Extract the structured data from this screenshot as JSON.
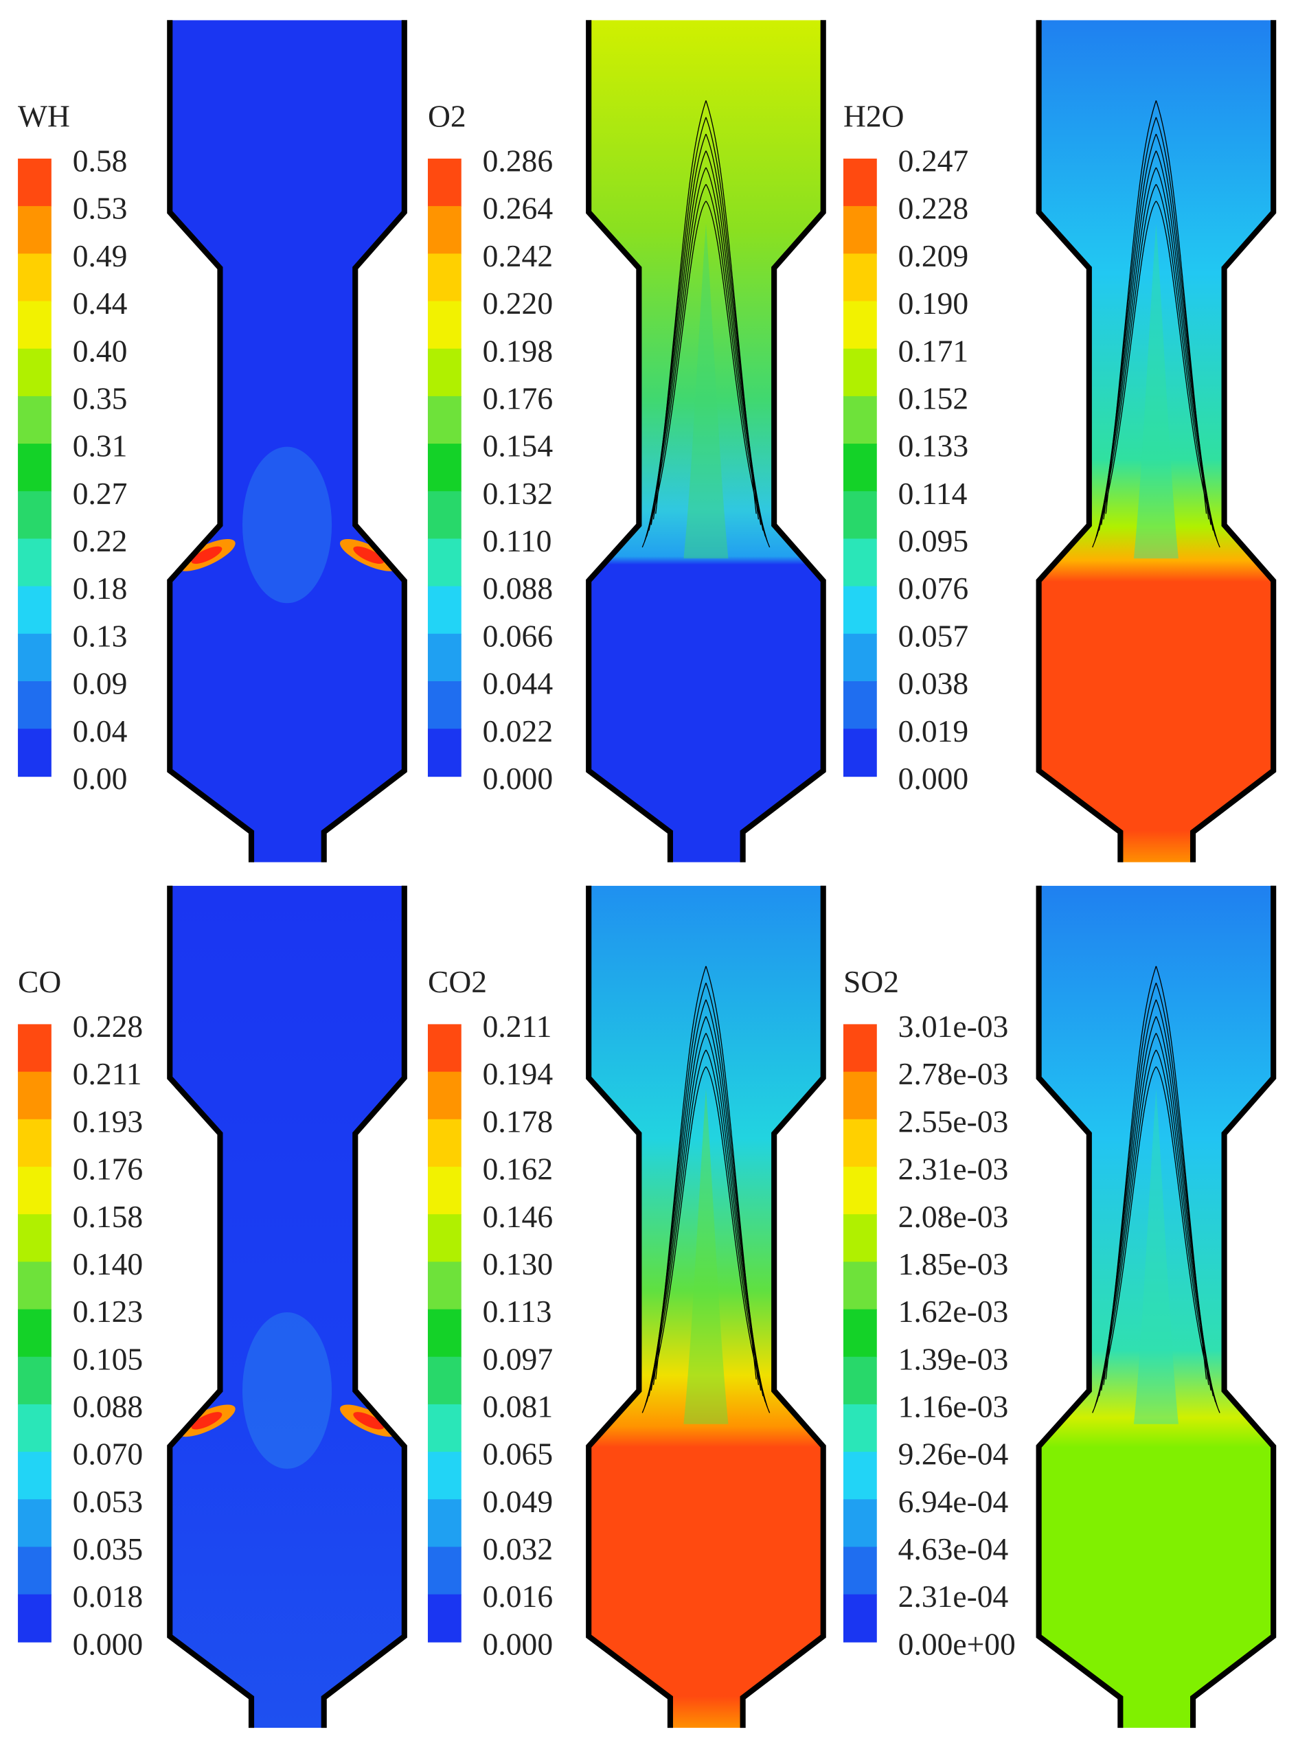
{
  "panels": [
    {
      "title": "WH",
      "legend": [
        "0.58",
        "0.53",
        "0.49",
        "0.44",
        "0.40",
        "0.35",
        "0.31",
        "0.27",
        "0.22",
        "0.18",
        "0.13",
        "0.09",
        "0.04",
        "0.00"
      ]
    },
    {
      "title": "O2",
      "legend": [
        "0.286",
        "0.264",
        "0.242",
        "0.220",
        "0.198",
        "0.176",
        "0.154",
        "0.132",
        "0.110",
        "0.088",
        "0.066",
        "0.044",
        "0.022",
        "0.000"
      ]
    },
    {
      "title": "H2O",
      "legend": [
        "0.247",
        "0.228",
        "0.209",
        "0.190",
        "0.171",
        "0.152",
        "0.133",
        "0.114",
        "0.095",
        "0.076",
        "0.057",
        "0.038",
        "0.019",
        "0.000"
      ]
    },
    {
      "title": "CO",
      "legend": [
        "0.228",
        "0.211",
        "0.193",
        "0.176",
        "0.158",
        "0.140",
        "0.123",
        "0.105",
        "0.088",
        "0.070",
        "0.053",
        "0.035",
        "0.018",
        "0.000"
      ]
    },
    {
      "title": "CO2",
      "legend": [
        "0.211",
        "0.194",
        "0.178",
        "0.162",
        "0.146",
        "0.130",
        "0.113",
        "0.097",
        "0.081",
        "0.065",
        "0.049",
        "0.032",
        "0.016",
        "0.000"
      ]
    },
    {
      "title": "SO2",
      "legend": [
        "3.01e-03",
        "2.78e-03",
        "2.55e-03",
        "2.31e-03",
        "2.08e-03",
        "1.85e-03",
        "1.62e-03",
        "1.39e-03",
        "1.16e-03",
        "9.26e-04",
        "6.94e-04",
        "4.63e-04",
        "2.31e-04",
        "0.00e+00"
      ]
    }
  ]
}
